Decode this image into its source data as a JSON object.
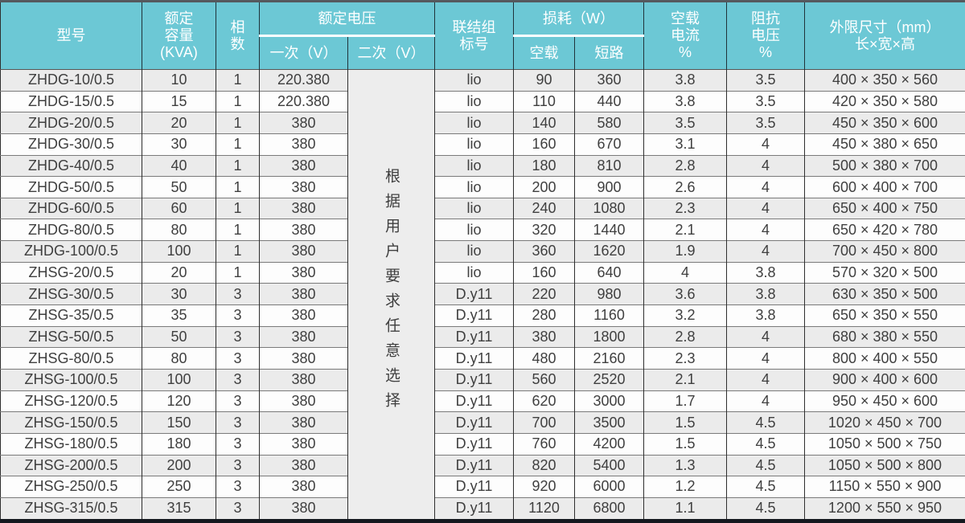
{
  "colors": {
    "header_bg": "#6cc8d5",
    "header_text": "#ffffff",
    "row_odd_bg": "#ebebeb",
    "row_even_bg": "#fdfdfd",
    "body_text": "#3f3f3f",
    "grid_vertical": "#2f2f2f",
    "grid_horizontal": "#7a7a7a",
    "top_border": "#55595e",
    "bottom_border": "#14181f"
  },
  "table": {
    "headers": {
      "model": "型号",
      "capacity_lines": [
        "额定",
        "容量",
        "(KVA)"
      ],
      "phases_lines": [
        "相",
        "数"
      ],
      "voltage_group": "额定电压",
      "voltage_primary": "一次（V）",
      "voltage_secondary": "二次（V）",
      "connection_lines": [
        "联结组",
        "标号"
      ],
      "loss_group": "损耗（W）",
      "loss_noload": "空载",
      "loss_short": "短路",
      "noload_current_lines": [
        "空载",
        "电流",
        "%"
      ],
      "impedance_lines": [
        "阻抗",
        "电压",
        "%"
      ],
      "dimensions_lines": [
        "外限尺寸（mm）",
        "长×宽×高"
      ]
    },
    "secondary_note": "根据用户要求任意选择",
    "rows": [
      {
        "model": "ZHDG-10/0.5",
        "kva": "10",
        "phase": "1",
        "primary_v": "220.380",
        "group": "lio",
        "noload_w": "90",
        "short_w": "360",
        "current_pct": "3.8",
        "impedance_pct": "3.5",
        "dims": "400 × 350 × 560"
      },
      {
        "model": "ZHDG-15/0.5",
        "kva": "15",
        "phase": "1",
        "primary_v": "220.380",
        "group": "lio",
        "noload_w": "110",
        "short_w": "440",
        "current_pct": "3.8",
        "impedance_pct": "3.5",
        "dims": "420 × 350 × 580"
      },
      {
        "model": "ZHDG-20/0.5",
        "kva": "20",
        "phase": "1",
        "primary_v": "380",
        "group": "lio",
        "noload_w": "140",
        "short_w": "580",
        "current_pct": "3.5",
        "impedance_pct": "3.5",
        "dims": "450 × 350 × 600"
      },
      {
        "model": "ZHDG-30/0.5",
        "kva": "30",
        "phase": "1",
        "primary_v": "380",
        "group": "lio",
        "noload_w": "160",
        "short_w": "670",
        "current_pct": "3.1",
        "impedance_pct": "4",
        "dims": "450 × 380 × 650"
      },
      {
        "model": "ZHDG-40/0.5",
        "kva": "40",
        "phase": "1",
        "primary_v": "380",
        "group": "lio",
        "noload_w": "180",
        "short_w": "810",
        "current_pct": "2.8",
        "impedance_pct": "4",
        "dims": "500 × 380 × 700"
      },
      {
        "model": "ZHDG-50/0.5",
        "kva": "50",
        "phase": "1",
        "primary_v": "380",
        "group": "lio",
        "noload_w": "200",
        "short_w": "900",
        "current_pct": "2.6",
        "impedance_pct": "4",
        "dims": "600 × 400 × 700"
      },
      {
        "model": "ZHDG-60/0.5",
        "kva": "60",
        "phase": "1",
        "primary_v": "380",
        "group": "lio",
        "noload_w": "240",
        "short_w": "1080",
        "current_pct": "2.3",
        "impedance_pct": "4",
        "dims": "650 × 400 × 750"
      },
      {
        "model": "ZHDG-80/0.5",
        "kva": "80",
        "phase": "1",
        "primary_v": "380",
        "group": "lio",
        "noload_w": "320",
        "short_w": "1440",
        "current_pct": "2.1",
        "impedance_pct": "4",
        "dims": "650 × 420 × 780"
      },
      {
        "model": "ZHDG-100/0.5",
        "kva": "100",
        "phase": "1",
        "primary_v": "380",
        "group": "lio",
        "noload_w": "360",
        "short_w": "1620",
        "current_pct": "1.9",
        "impedance_pct": "4",
        "dims": "700 × 450 × 800"
      },
      {
        "model": "ZHSG-20/0.5",
        "kva": "20",
        "phase": "1",
        "primary_v": "380",
        "group": "lio",
        "noload_w": "160",
        "short_w": "640",
        "current_pct": "4",
        "impedance_pct": "3.8",
        "dims": "570 × 320 × 500"
      },
      {
        "model": "ZHSG-30/0.5",
        "kva": "30",
        "phase": "3",
        "primary_v": "380",
        "group": "D.y11",
        "noload_w": "220",
        "short_w": "980",
        "current_pct": "3.6",
        "impedance_pct": "3.8",
        "dims": "630 × 350 × 500"
      },
      {
        "model": "ZHSG-35/0.5",
        "kva": "35",
        "phase": "3",
        "primary_v": "380",
        "group": "D.y11",
        "noload_w": "280",
        "short_w": "1160",
        "current_pct": "3.2",
        "impedance_pct": "3.8",
        "dims": "650 × 350 × 550"
      },
      {
        "model": "ZHSG-50/0.5",
        "kva": "50",
        "phase": "3",
        "primary_v": "380",
        "group": "D.y11",
        "noload_w": "380",
        "short_w": "1800",
        "current_pct": "2.8",
        "impedance_pct": "4",
        "dims": "680 × 380 × 550"
      },
      {
        "model": "ZHSG-80/0.5",
        "kva": "80",
        "phase": "3",
        "primary_v": "380",
        "group": "D.y11",
        "noload_w": "480",
        "short_w": "2160",
        "current_pct": "2.3",
        "impedance_pct": "4",
        "dims": "800 × 400 × 550"
      },
      {
        "model": "ZHSG-100/0.5",
        "kva": "100",
        "phase": "3",
        "primary_v": "380",
        "group": "D.y11",
        "noload_w": "560",
        "short_w": "2520",
        "current_pct": "2.1",
        "impedance_pct": "4",
        "dims": "900 × 400 × 600"
      },
      {
        "model": "ZHSG-120/0.5",
        "kva": "120",
        "phase": "3",
        "primary_v": "380",
        "group": "D.y11",
        "noload_w": "620",
        "short_w": "3000",
        "current_pct": "1.7",
        "impedance_pct": "4",
        "dims": "950 × 450 × 600"
      },
      {
        "model": "ZHSG-150/0.5",
        "kva": "150",
        "phase": "3",
        "primary_v": "380",
        "group": "D.y11",
        "noload_w": "700",
        "short_w": "3500",
        "current_pct": "1.5",
        "impedance_pct": "4.5",
        "dims": "1020 × 450 × 700"
      },
      {
        "model": "ZHSG-180/0.5",
        "kva": "180",
        "phase": "3",
        "primary_v": "380",
        "group": "D.y11",
        "noload_w": "760",
        "short_w": "4200",
        "current_pct": "1.5",
        "impedance_pct": "4.5",
        "dims": "1050 × 500 × 750"
      },
      {
        "model": "ZHSG-200/0.5",
        "kva": "200",
        "phase": "3",
        "primary_v": "380",
        "group": "D.y11",
        "noload_w": "820",
        "short_w": "5400",
        "current_pct": "1.3",
        "impedance_pct": "4.5",
        "dims": "1050 × 500 × 800"
      },
      {
        "model": "ZHSG-250/0.5",
        "kva": "250",
        "phase": "3",
        "primary_v": "380",
        "group": "D.y11",
        "noload_w": "920",
        "short_w": "6000",
        "current_pct": "1.2",
        "impedance_pct": "4.5",
        "dims": "1150 × 550 × 900"
      },
      {
        "model": "ZHSG-315/0.5",
        "kva": "315",
        "phase": "3",
        "primary_v": "380",
        "group": "D.y11",
        "noload_w": "1120",
        "short_w": "6800",
        "current_pct": "1.1",
        "impedance_pct": "4.5",
        "dims": "1200 × 550 × 950"
      }
    ]
  }
}
